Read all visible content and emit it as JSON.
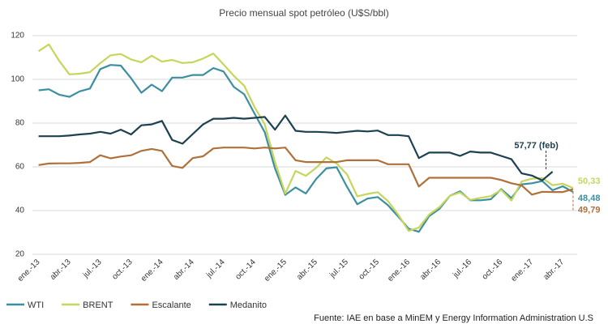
{
  "chart_data": {
    "type": "line",
    "title": "Precio mensual spot petróleo (U$S/bbl)",
    "source": "Fuente: IAE en base a MinEM y Energy Information Administration U.S",
    "categories": [
      "ene.-13",
      null,
      null,
      "abr.-13",
      null,
      null,
      "jul.-13",
      null,
      null,
      "oct.-13",
      null,
      null,
      "ene.-14",
      null,
      null,
      "abr.-14",
      null,
      null,
      "jul.-14",
      null,
      null,
      "oct.-14",
      null,
      null,
      "ene.-15",
      null,
      null,
      "abr.-15",
      null,
      null,
      "jul.-15",
      null,
      null,
      "oct.-15",
      null,
      null,
      "ene.-16",
      null,
      null,
      "abr.-16",
      null,
      null,
      "jul.-16",
      null,
      null,
      "oct.-16",
      null,
      null,
      "ene.-17",
      null,
      null,
      "abr.-17",
      null
    ],
    "ylim": [
      20,
      120
    ],
    "yticks": [
      20,
      40,
      60,
      80,
      100,
      120
    ],
    "grid": true,
    "legend": "bottom-left",
    "series": [
      {
        "name": "WTI",
        "color": "#3b8fa0",
        "values": [
          95,
          95.5,
          93,
          92,
          94.5,
          95.8,
          104.7,
          106.6,
          106.3,
          100.5,
          93.9,
          97.6,
          94.6,
          100.8,
          100.8,
          102,
          102,
          105.2,
          103.6,
          96.5,
          93.2,
          84.4,
          75.8,
          59.3,
          47.2,
          50.6,
          47.8,
          54.4,
          59.3,
          59.8,
          50.9,
          42.9,
          45.5,
          46.2,
          42.4,
          37.2,
          31.7,
          30.3,
          37.5,
          40.8,
          46.7,
          48.8,
          44.7,
          44.7,
          45.2,
          49.8,
          45.7,
          52,
          52.5,
          53.5,
          49.3,
          51.1,
          48.48
        ],
        "value_labels": [
          null,
          null,
          null,
          null,
          null,
          null,
          null,
          null,
          null,
          null,
          null,
          null,
          null,
          null,
          null,
          null,
          null,
          null,
          null,
          null,
          null,
          null,
          null,
          null,
          null,
          null,
          null,
          null,
          null,
          null,
          null,
          null,
          null,
          null,
          null,
          null,
          null,
          null,
          null,
          null,
          null,
          null,
          null,
          null,
          null,
          null,
          null,
          null,
          null,
          null,
          null,
          null,
          "48,48"
        ]
      },
      {
        "name": "BRENT",
        "color": "#c6d65c",
        "values": [
          112.9,
          116,
          108.5,
          102.3,
          102.6,
          103.3,
          107.4,
          111,
          111.6,
          109.1,
          107.8,
          110.8,
          108.1,
          108.9,
          107.5,
          107.8,
          109.5,
          111.8,
          106.8,
          101.6,
          97.1,
          87.4,
          79.4,
          62.3,
          47.8,
          58.1,
          55.9,
          59.5,
          64.3,
          61.5,
          56.6,
          46.5,
          47.6,
          48.4,
          44.3,
          38,
          30.7,
          32.2,
          38.2,
          41.6,
          46.7,
          48.3,
          44.9,
          45.8,
          46.6,
          49.5,
          44.6,
          53.3,
          54.6,
          54.9,
          51.6,
          52.3,
          50.33
        ],
        "value_labels": [
          null,
          null,
          null,
          null,
          null,
          null,
          null,
          null,
          null,
          null,
          null,
          null,
          null,
          null,
          null,
          null,
          null,
          null,
          null,
          null,
          null,
          null,
          null,
          null,
          null,
          null,
          null,
          null,
          null,
          null,
          null,
          null,
          null,
          null,
          null,
          null,
          null,
          null,
          null,
          null,
          null,
          null,
          null,
          null,
          null,
          null,
          null,
          null,
          null,
          null,
          null,
          null,
          "50,33"
        ]
      },
      {
        "name": "Escalante",
        "color": "#b0703a",
        "values": [
          60.8,
          61.5,
          61.6,
          61.6,
          61.8,
          62.2,
          65.3,
          63.9,
          64.7,
          65.3,
          67.3,
          68.2,
          67.3,
          60.4,
          59.5,
          64,
          64.8,
          68.4,
          68.8,
          68.8,
          68.8,
          68.4,
          68.8,
          68.4,
          68.8,
          63,
          62.2,
          62.2,
          62.2,
          62.2,
          63,
          63,
          63,
          63,
          61.2,
          61.2,
          61.2,
          51,
          55,
          55,
          55,
          55,
          55,
          55,
          55,
          54,
          52.5,
          51.5,
          47.3,
          48.6,
          48.5,
          48.5,
          49.79
        ],
        "value_labels": [
          null,
          null,
          null,
          null,
          null,
          null,
          null,
          null,
          null,
          null,
          null,
          null,
          null,
          null,
          null,
          null,
          null,
          null,
          null,
          null,
          null,
          null,
          null,
          null,
          null,
          null,
          null,
          null,
          null,
          null,
          null,
          null,
          null,
          null,
          null,
          null,
          null,
          null,
          null,
          null,
          null,
          null,
          null,
          null,
          null,
          null,
          null,
          null,
          null,
          null,
          null,
          null,
          "49,79"
        ]
      },
      {
        "name": "Medanito",
        "color": "#1c4150",
        "values": [
          74,
          74,
          74,
          74.3,
          74.8,
          75.2,
          76,
          75.2,
          77,
          74.8,
          79,
          79.4,
          81,
          72.3,
          70.6,
          75,
          79.4,
          82,
          82,
          82.4,
          82,
          82.4,
          82.8,
          77,
          83.5,
          76.5,
          76,
          76,
          75.8,
          75.5,
          76,
          76.5,
          76.2,
          76.6,
          74.5,
          74.5,
          74,
          64,
          66.5,
          66.5,
          66.5,
          65,
          67,
          66.5,
          66.5,
          65,
          63.5,
          57,
          56,
          53.8,
          57.77,
          null,
          null
        ],
        "value_labels": [
          null,
          null,
          null,
          null,
          null,
          null,
          null,
          null,
          null,
          null,
          null,
          null,
          null,
          null,
          null,
          null,
          null,
          null,
          null,
          null,
          null,
          null,
          null,
          null,
          null,
          null,
          null,
          null,
          null,
          null,
          null,
          null,
          null,
          null,
          null,
          null,
          null,
          null,
          null,
          null,
          null,
          null,
          null,
          null,
          null,
          null,
          null,
          null,
          null,
          null,
          "57,77 (feb)",
          null,
          null
        ]
      }
    ]
  }
}
